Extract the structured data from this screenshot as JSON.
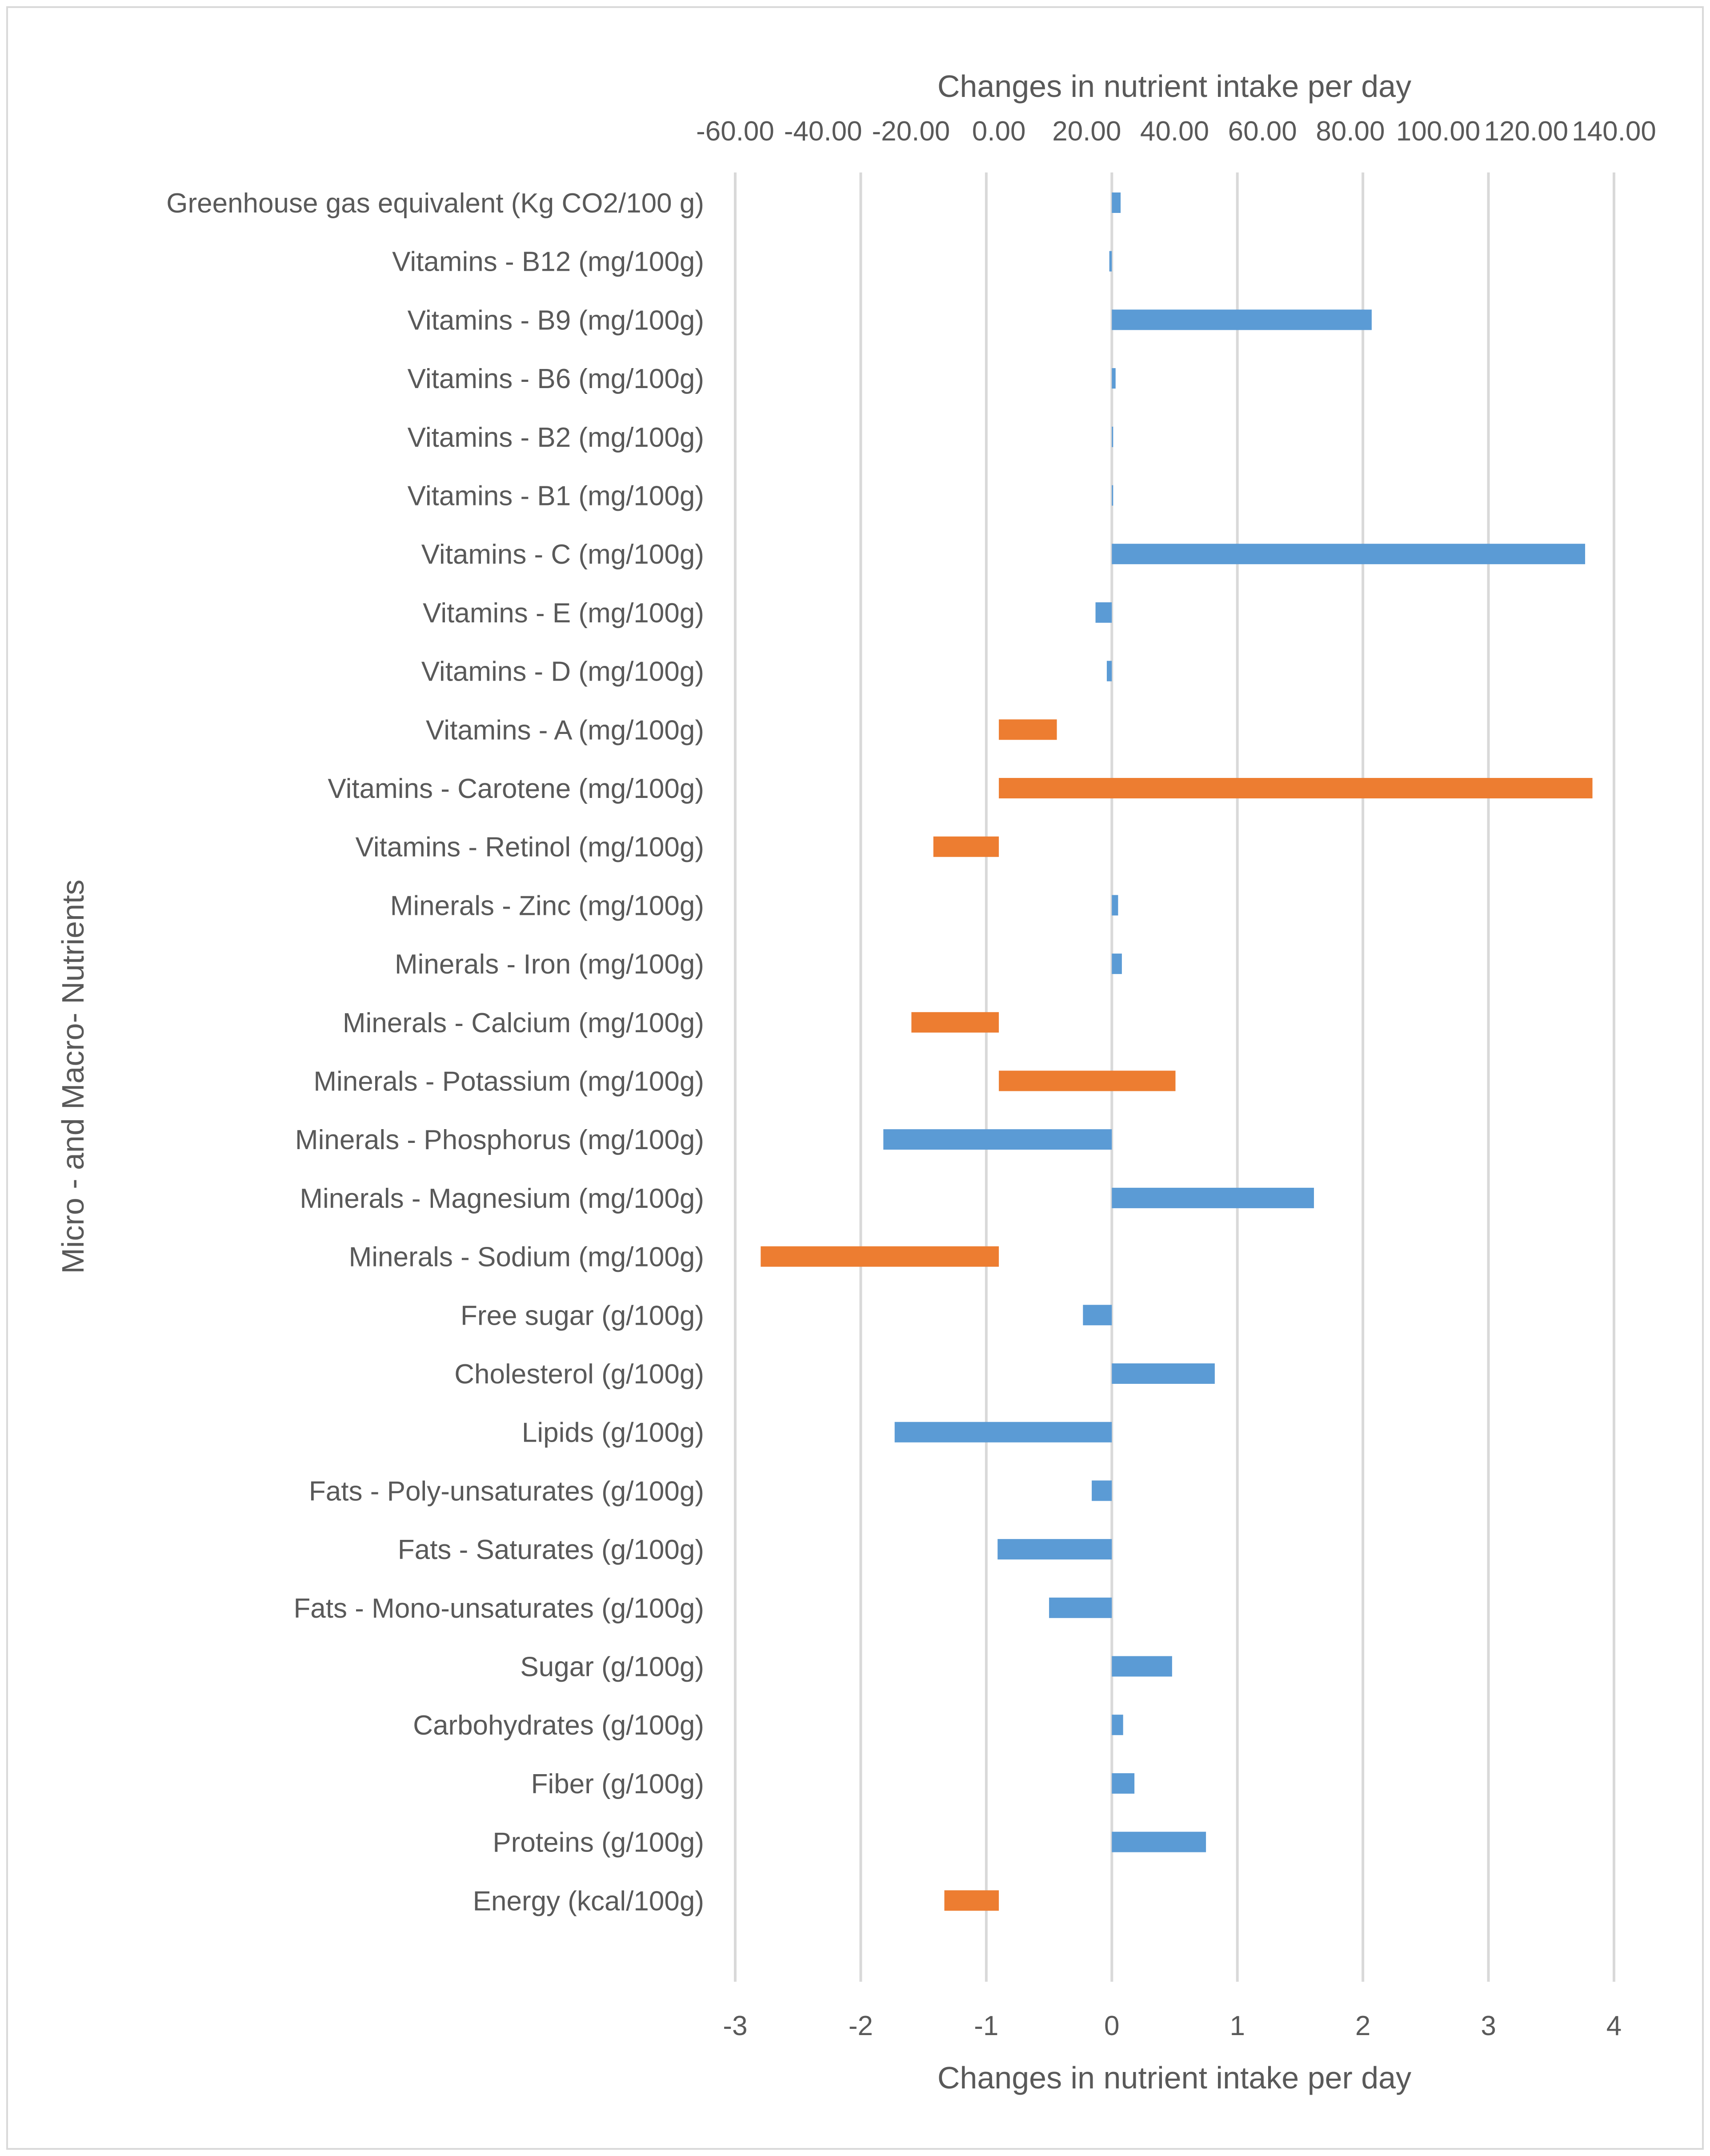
{
  "chart_data": {
    "type": "bar",
    "orientation": "horizontal",
    "y_axis_title": "Micro - and Macro- Nutrients",
    "top_axis": {
      "title": "Changes in nutrient intake per day",
      "range": [
        -60,
        140
      ],
      "ticks": [
        "-60.00",
        "-40.00",
        "-20.00",
        "0.00",
        "20.00",
        "40.00",
        "60.00",
        "80.00",
        "100.00",
        "120.00",
        "140.00"
      ]
    },
    "bottom_axis": {
      "title": "Changes in nutrient intake per day",
      "range": [
        -3,
        4
      ],
      "ticks": [
        "-3",
        "-2",
        "-1",
        "0",
        "1",
        "2",
        "3",
        "4"
      ]
    },
    "grid": true,
    "colors": {
      "primary": "#5b9bd5",
      "secondary": "#ed7d31",
      "grid": "#d9d9d9",
      "text": "#595959"
    },
    "categories": [
      "Greenhouse gas equivalent (Kg CO2/100 g)",
      "Vitamins - B12 (mg/100g)",
      "Vitamins - B9 (mg/100g)",
      "Vitamins - B6 (mg/100g)",
      "Vitamins - B2 (mg/100g)",
      "Vitamins - B1 (mg/100g)",
      "Vitamins - C (mg/100g)",
      "Vitamins - E (mg/100g)",
      "Vitamins - D (mg/100g)",
      "Vitamins - A (mg/100g)",
      "Vitamins - Carotene (mg/100g)",
      "Vitamins - Retinol (mg/100g)",
      "Minerals - Zinc (mg/100g)",
      "Minerals - Iron (mg/100g)",
      "Minerals - Calcium (mg/100g)",
      "Minerals - Potassium (mg/100g)",
      "Minerals - Phosphorus (mg/100g)",
      "Minerals - Magnesium (mg/100g)",
      "Minerals - Sodium (mg/100g)",
      "Free sugar (g/100g)",
      "Cholesterol (g/100g)",
      "Lipids (g/100g)",
      "Fats - Poly-unsaturates (g/100g)",
      "Fats - Saturates (g/100g)",
      "Fats - Mono-unsaturates (g/100g)",
      "Sugar (g/100g)",
      "Carbohydrates (g/100g)",
      "Fiber (g/100g)",
      "Proteins (g/100g)",
      "Energy (kcal/100g)"
    ],
    "series": [
      {
        "axis": "bottom",
        "color": "#5b9bd5",
        "values": [
          0.07,
          -0.02,
          2.07,
          0.03,
          0,
          0.01,
          3.77,
          -0.13,
          -0.04,
          null,
          null,
          null,
          0.05,
          0.08,
          null,
          null,
          -1.82,
          1.61,
          null,
          -0.23,
          0.82,
          -1.73,
          -0.16,
          -0.91,
          -0.5,
          0.48,
          0.09,
          0.18,
          0.75,
          null
        ]
      },
      {
        "axis": "top",
        "color": "#ed7d31",
        "values": [
          null,
          null,
          null,
          null,
          null,
          null,
          null,
          null,
          null,
          13.2,
          135.1,
          -14.9,
          null,
          null,
          -19.9,
          40.2,
          null,
          null,
          -54.2,
          null,
          null,
          null,
          null,
          null,
          null,
          null,
          null,
          null,
          null,
          -12.4
        ]
      }
    ]
  }
}
